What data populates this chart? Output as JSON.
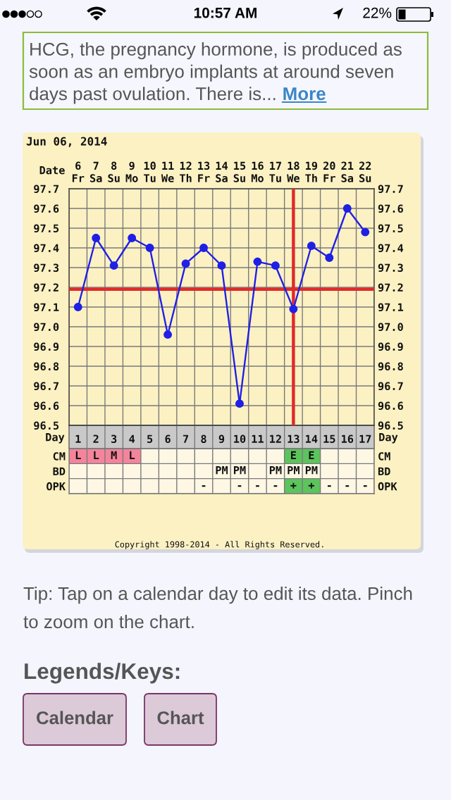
{
  "chart_data": [
    {
      "type": "line",
      "title": "Jun 06, 2014",
      "xlabel": "Day",
      "x2label": "Date",
      "categories": [
        "1",
        "2",
        "3",
        "4",
        "5",
        "6",
        "7",
        "8",
        "9",
        "10",
        "11",
        "12",
        "13",
        "14",
        "15",
        "16",
        "17"
      ],
      "x2lim": [
        5.5,
        22.5
      ],
      "x2ticks": [
        {
          "value": 6,
          "label": "6\nFr"
        },
        {
          "value": 7,
          "label": "7\nSa"
        },
        {
          "value": 8,
          "label": "8\nSu"
        },
        {
          "value": 9,
          "label": "9\nMo"
        },
        {
          "value": 10,
          "label": "10\nTu"
        },
        {
          "value": 11,
          "label": "11\nWe"
        },
        {
          "value": 12,
          "label": "12\nTh"
        },
        {
          "value": 13,
          "label": "13\nFr"
        },
        {
          "value": 14,
          "label": "14\nSa"
        },
        {
          "value": 15,
          "label": "15\nSu"
        },
        {
          "value": 16,
          "label": "16\nMo"
        },
        {
          "value": 17,
          "label": "17\nTu"
        },
        {
          "value": 18,
          "label": "18\nWe"
        },
        {
          "value": 19,
          "label": "19\nTh"
        },
        {
          "value": 20,
          "label": "20\nFr"
        },
        {
          "value": 21,
          "label": "21\nSa"
        },
        {
          "value": 22,
          "label": "22\nSu"
        }
      ],
      "ylim": [
        96.5,
        97.7
      ],
      "yticks": [
        96.5,
        96.6,
        96.7,
        96.8,
        96.9,
        {
          "value": 97.0,
          "label": "97.0"
        },
        97.1,
        97.2,
        97.3,
        97.4,
        97.5,
        97.6,
        97.7
      ],
      "y2lim": [
        96.5,
        97.7
      ],
      "y2ticks": [
        96.5,
        96.6,
        96.7,
        96.8,
        96.9,
        {
          "value": 97.0,
          "label": "97.0"
        },
        97.1,
        97.2,
        97.3,
        97.4,
        97.5,
        97.6,
        97.7
      ],
      "series": [
        {
          "color": "#1f1fe6",
          "values": [
            97.1,
            97.45,
            97.31,
            97.45,
            97.4,
            96.96,
            97.32,
            97.4,
            97.31,
            96.61,
            97.33,
            97.31,
            97.09,
            97.41,
            97.35,
            97.6,
            97.48
          ]
        }
      ],
      "marker": "circle",
      "grid": true,
      "ref_lines": [
        {
          "axis": "y",
          "value": 97.19,
          "color": "#e02a2a"
        },
        {
          "axis": "x",
          "value": "13",
          "color": "#e02a2a"
        }
      ],
      "annotations": [
        "Copyright 1998-2014 - All Rights Reserved."
      ]
    },
    {
      "type": "other",
      "y_categories": [
        "CM",
        "BD",
        "OPK"
      ],
      "y2_categories": [
        "CM",
        "BD",
        "OPK"
      ],
      "annotations": [
        {
          "text": "L",
          "x": "1",
          "y": "CM"
        },
        {
          "text": "L",
          "x": "2",
          "y": "CM"
        },
        {
          "text": "M",
          "x": "3",
          "y": "CM"
        },
        {
          "text": "L",
          "x": "4",
          "y": "CM"
        },
        {
          "text": "E",
          "x": "13",
          "y": "CM"
        },
        {
          "text": "E",
          "x": "14",
          "y": "CM"
        },
        {
          "text": "PM",
          "x": "9",
          "y": "BD"
        },
        {
          "text": "PM",
          "x": "10",
          "y": "BD"
        },
        {
          "text": "PM",
          "x": "12",
          "y": "BD"
        },
        {
          "text": "PM",
          "x": "13",
          "y": "BD"
        },
        {
          "text": "PM",
          "x": "14",
          "y": "BD"
        },
        {
          "text": "-",
          "x": "8",
          "y": "OPK"
        },
        {
          "text": "-",
          "x": "10",
          "y": "OPK"
        },
        {
          "text": "-",
          "x": "11",
          "y": "OPK"
        },
        {
          "text": "-",
          "x": "12",
          "y": "OPK"
        },
        {
          "text": "+",
          "x": "13",
          "y": "OPK"
        },
        {
          "text": "+",
          "x": "14",
          "y": "OPK"
        },
        {
          "text": "-",
          "x": "15",
          "y": "OPK"
        },
        {
          "text": "-",
          "x": "16",
          "y": "OPK"
        },
        {
          "text": "-",
          "x": "17",
          "y": "OPK"
        }
      ],
      "colors": [
        "#f4849c",
        "#f4849c",
        "#f4849c",
        "#f4849c",
        "#5cc45c",
        "#5cc45c",
        null,
        null,
        null,
        null,
        null,
        null,
        null,
        null,
        null,
        "#5cc45c",
        "#5cc45c",
        null,
        null,
        null
      ]
    },
    {
      "type": "other",
      "annotations": [
        "10:57 AM",
        "22%",
        "HCG, the pregnancy hormone, is produced as soon as an embryo implants at around seven days past ovulation. There is...",
        "More",
        "Tip: Tap on a calendar day to edit its data. Pinch to zoom on the chart.",
        "Legends/Keys:",
        "Calendar",
        "Chart"
      ]
    }
  ]
}
